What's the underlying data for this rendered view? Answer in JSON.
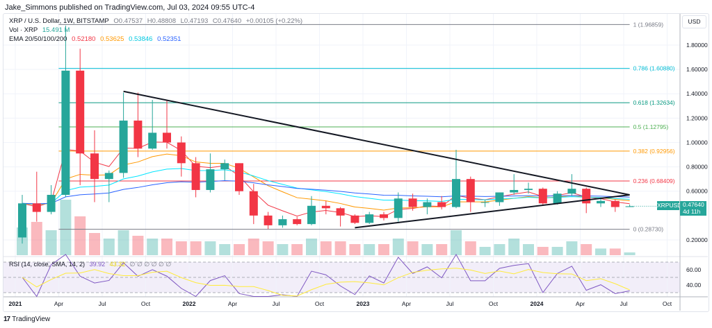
{
  "header": {
    "published": "Jake_Simmons published on TradingView.com, Jul 03, 2024 09:55 UTC-4"
  },
  "legend": {
    "symbol": "XRP / U.S. Dollar, 1W, BITSTAMP",
    "o": "O0.47537",
    "h": "H0.48808",
    "l": "L0.47193",
    "c": "C0.47640",
    "change": "+0.00105 (+0.22%)",
    "vol_label": "Vol · XRP",
    "vol_value": "15.491 M",
    "ema_label": "EMA 20/50/100/200",
    "ema_values": [
      "0.52180",
      "0.53625",
      "0.53846",
      "0.52351"
    ],
    "ema_colors": [
      "#f23645",
      "#ff9800",
      "#00e5ff",
      "#2962ff"
    ],
    "rsi_label": "RSI (14, close, SMA, 14, 2)",
    "rsi_value": "39.92",
    "rsi_sma": "43.32",
    "rsi_empty": "∅ ∅ ∅ ∅ ∅ ∅"
  },
  "price_axis": {
    "currency": "USD",
    "ticks": [
      "1.80000",
      "1.60000",
      "1.40000",
      "1.20000",
      "1.00000",
      "0.80000",
      "0.60000",
      "0.20000"
    ],
    "rsi_ticks": [
      "60.00",
      "40.00"
    ]
  },
  "price_tag": {
    "symbol": "XRPUSD",
    "price": "0.47640",
    "countdown": "4d 11h"
  },
  "time_axis": [
    "2021",
    "Apr",
    "Jul",
    "Oct",
    "2022",
    "Apr",
    "Jul",
    "Oct",
    "2023",
    "Apr",
    "Jul",
    "Oct",
    "2024",
    "Apr",
    "Jul",
    "Oct"
  ],
  "footer": {
    "brand": "TradingView"
  },
  "colors": {
    "up": "#26a69a",
    "down": "#f23645",
    "rsi": "#7e57c2",
    "rsi_sma": "#ffeb3b"
  },
  "chart_data": {
    "type": "candlestick",
    "interval_shown": "1W",
    "x": [
      "2021-01",
      "2021-02",
      "2021-03",
      "2021-04",
      "2021-05",
      "2021-06",
      "2021-07",
      "2021-08",
      "2021-09",
      "2021-10",
      "2021-11",
      "2021-12",
      "2022-01",
      "2022-02",
      "2022-03",
      "2022-04",
      "2022-05",
      "2022-06",
      "2022-07",
      "2022-08",
      "2022-09",
      "2022-10",
      "2022-11",
      "2022-12",
      "2023-01",
      "2023-02",
      "2023-03",
      "2023-04",
      "2023-05",
      "2023-06",
      "2023-07",
      "2023-08",
      "2023-09",
      "2023-10",
      "2023-11",
      "2023-12",
      "2024-01",
      "2024-02",
      "2024-03",
      "2024-04",
      "2024-05",
      "2024-06",
      "2024-07"
    ],
    "ohlc": [
      [
        0.22,
        0.57,
        0.17,
        0.5
      ],
      [
        0.5,
        0.76,
        0.35,
        0.43
      ],
      [
        0.43,
        0.65,
        0.41,
        0.57
      ],
      [
        0.57,
        1.96,
        0.55,
        1.59
      ],
      [
        1.59,
        1.77,
        0.65,
        0.91
      ],
      [
        0.91,
        1.1,
        0.51,
        0.7
      ],
      [
        0.7,
        0.77,
        0.51,
        0.75
      ],
      [
        0.75,
        1.41,
        0.71,
        1.18
      ],
      [
        1.18,
        1.41,
        0.88,
        0.95
      ],
      [
        0.95,
        1.35,
        0.94,
        1.08
      ],
      [
        1.08,
        1.35,
        0.95,
        1.0
      ],
      [
        1.0,
        1.05,
        0.72,
        0.83
      ],
      [
        0.83,
        0.88,
        0.55,
        0.61
      ],
      [
        0.61,
        0.91,
        0.59,
        0.78
      ],
      [
        0.78,
        0.86,
        0.69,
        0.83
      ],
      [
        0.83,
        0.83,
        0.57,
        0.6
      ],
      [
        0.6,
        0.66,
        0.33,
        0.4
      ],
      [
        0.4,
        0.43,
        0.29,
        0.32
      ],
      [
        0.32,
        0.4,
        0.3,
        0.37
      ],
      [
        0.37,
        0.39,
        0.32,
        0.33
      ],
      [
        0.33,
        0.56,
        0.32,
        0.48
      ],
      [
        0.48,
        0.52,
        0.41,
        0.46
      ],
      [
        0.46,
        0.47,
        0.31,
        0.4
      ],
      [
        0.4,
        0.41,
        0.33,
        0.34
      ],
      [
        0.34,
        0.43,
        0.33,
        0.41
      ],
      [
        0.41,
        0.43,
        0.36,
        0.38
      ],
      [
        0.38,
        0.59,
        0.35,
        0.54
      ],
      [
        0.54,
        0.58,
        0.44,
        0.47
      ],
      [
        0.47,
        0.54,
        0.41,
        0.51
      ],
      [
        0.51,
        0.56,
        0.45,
        0.47
      ],
      [
        0.47,
        0.94,
        0.46,
        0.7
      ],
      [
        0.7,
        0.72,
        0.43,
        0.51
      ],
      [
        0.51,
        0.53,
        0.47,
        0.51
      ],
      [
        0.51,
        0.59,
        0.48,
        0.59
      ],
      [
        0.59,
        0.74,
        0.57,
        0.61
      ],
      [
        0.61,
        0.67,
        0.58,
        0.62
      ],
      [
        0.62,
        0.63,
        0.48,
        0.5
      ],
      [
        0.5,
        0.6,
        0.49,
        0.58
      ],
      [
        0.58,
        0.74,
        0.56,
        0.62
      ],
      [
        0.62,
        0.63,
        0.42,
        0.5
      ],
      [
        0.5,
        0.55,
        0.47,
        0.52
      ],
      [
        0.52,
        0.53,
        0.43,
        0.47
      ],
      [
        0.47,
        0.49,
        0.47,
        0.4764
      ]
    ],
    "volume_relative": [
      0.5,
      0.6,
      0.45,
      1.0,
      0.7,
      0.4,
      0.3,
      0.45,
      0.35,
      0.3,
      0.3,
      0.25,
      0.25,
      0.25,
      0.2,
      0.2,
      0.3,
      0.25,
      0.2,
      0.2,
      0.3,
      0.25,
      0.25,
      0.2,
      0.2,
      0.2,
      0.3,
      0.25,
      0.2,
      0.2,
      0.45,
      0.25,
      0.15,
      0.2,
      0.3,
      0.2,
      0.15,
      0.15,
      0.25,
      0.2,
      0.12,
      0.12,
      0.05
    ],
    "fib_levels": [
      {
        "label": "1 (1.96859)",
        "value": 1.96859,
        "color": "#787b86"
      },
      {
        "label": "0.786 (1.60880)",
        "value": 1.6088,
        "color": "#00bcd4"
      },
      {
        "label": "0.618 (1.32634)",
        "value": 1.32634,
        "color": "#089981"
      },
      {
        "label": "0.5 (1.12795)",
        "value": 1.12795,
        "color": "#4caf50"
      },
      {
        "label": "0.382 (0.92956)",
        "value": 0.92956,
        "color": "#ff9800"
      },
      {
        "label": "0.236 (0.68409)",
        "value": 0.68409,
        "color": "#f23645"
      },
      {
        "label": "0 (0.28730)",
        "value": 0.2873,
        "color": "#787b86"
      }
    ],
    "trendlines": [
      {
        "from": [
          "2021-08",
          1.42
        ],
        "to": [
          "2024-07",
          0.57
        ]
      },
      {
        "from": [
          "2022-12",
          0.3
        ],
        "to": [
          "2024-07",
          0.57
        ]
      }
    ],
    "ylim": [
      0.1,
      2.0
    ],
    "rsi_bands": [
      70,
      50,
      30
    ]
  }
}
